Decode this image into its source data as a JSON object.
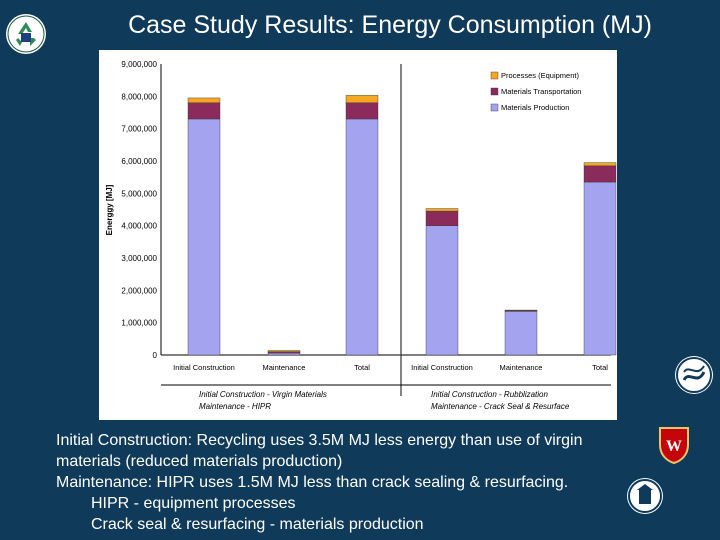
{
  "title": "Case Study Results:  Energy Consumption (MJ)",
  "colors": {
    "background": "#0f3a5a",
    "processes": "#f5a623",
    "transportation": "#8b2b5c",
    "production": "#a3a3f0"
  },
  "chart_data": {
    "type": "bar",
    "stacked": true,
    "ylabel": "Energgy [MJ]",
    "ylim": [
      0,
      9000000
    ],
    "y_ticks": [
      "0",
      "1,000,000",
      "2,000,000",
      "3,000,000",
      "4,000,000",
      "5,000,000",
      "6,000,000",
      "7,000,000",
      "8,000,000",
      "9,000,000"
    ],
    "categories": [
      "Initial Construction",
      "Maintenance",
      "Total",
      "Initial Construction",
      "Maintenance",
      "Total"
    ],
    "series": [
      {
        "name": "Processes (Equipment)",
        "color": "#f5a623",
        "values": [
          150000,
          40000,
          230000,
          80000,
          10000,
          100000
        ]
      },
      {
        "name": "Materials Transportation",
        "color": "#8b2b5c",
        "values": [
          500000,
          40000,
          500000,
          450000,
          30000,
          500000
        ]
      },
      {
        "name": "Materials Production",
        "color": "#a3a3f0",
        "values": [
          7300000,
          60000,
          7300000,
          4000000,
          1350000,
          5350000
        ]
      }
    ],
    "legend_position": "top-right",
    "group_labels": [
      {
        "line1": "Initial Construction - Virgin Materials",
        "line2": "Maintenance - HIPR"
      },
      {
        "line1": "Initial Construction - Rubblization",
        "line2": "Maintenance - Crack Seal & Resurface"
      }
    ],
    "grid": false
  },
  "bullets": {
    "line1": "Initial Construction:  Recycling uses 3.5M MJ less energy than use of virgin",
    "line2": "materials (reduced materials production)",
    "line3": "Maintenance:  HIPR uses 1.5M MJ less than crack sealing & resurfacing.",
    "line4": "HIPR - equipment processes",
    "line5": "Crack seal & resurfacing - materials production"
  },
  "logos": {
    "recycle": "recycle-logo-icon",
    "dot": "usdot-logo-icon",
    "uw": "uw-crest-icon",
    "seal": "state-seal-icon"
  },
  "uw_letter": "W"
}
